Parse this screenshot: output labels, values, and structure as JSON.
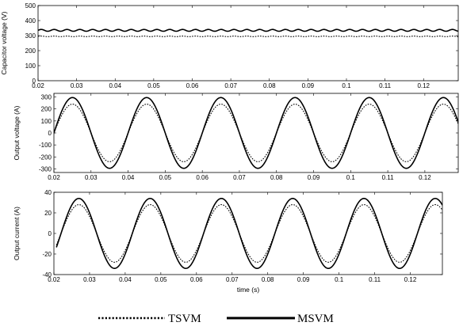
{
  "chart_data": [
    {
      "type": "line",
      "xlabel": "",
      "ylabel": "Capacitor voltage (V)",
      "xlim": [
        0.02,
        0.129
      ],
      "ylim": [
        0,
        500
      ],
      "xticks": [
        0.02,
        0.03,
        0.04,
        0.05,
        0.06,
        0.07,
        0.08,
        0.09,
        0.1,
        0.11,
        0.12
      ],
      "xtick_labels": [
        "0.02",
        "0.03",
        "0.04",
        "0.05",
        "0.06",
        "0.07",
        "0.08",
        "0.09",
        "0.1",
        "0.11",
        "0.12"
      ],
      "yticks": [
        0,
        100,
        200,
        300,
        400,
        500
      ],
      "ytick_labels": [
        "0",
        "100",
        "200",
        "300",
        "400",
        "500"
      ],
      "series": [
        {
          "name": "MSVM",
          "style": "solid",
          "kind": "dc",
          "level": 335,
          "ripple": 6,
          "freq": 300
        },
        {
          "name": "TSVM",
          "style": "dotted",
          "kind": "dc",
          "level": 295,
          "ripple": 2,
          "freq": 300
        }
      ]
    },
    {
      "type": "line",
      "xlabel": "",
      "ylabel": "Output voltage (A)",
      "xlim": [
        0.02,
        0.129
      ],
      "ylim": [
        -330,
        330
      ],
      "xticks": [
        0.02,
        0.03,
        0.04,
        0.05,
        0.06,
        0.07,
        0.08,
        0.09,
        0.1,
        0.11,
        0.12
      ],
      "xtick_labels": [
        "0.02",
        "0.03",
        "0.04",
        "0.05",
        "0.06",
        "0.07",
        "0.08",
        "0.09",
        "0.1",
        "0.11",
        "0.12"
      ],
      "yticks": [
        -300,
        -200,
        -100,
        0,
        100,
        200,
        300
      ],
      "ytick_labels": [
        "-300",
        "-200",
        "-100",
        "0",
        "100",
        "200",
        "300"
      ],
      "series": [
        {
          "name": "MSVM",
          "style": "solid",
          "kind": "sine",
          "amplitude": 295,
          "freq": 50,
          "phase_deg": 0,
          "x_start": 0.0195
        },
        {
          "name": "TSVM",
          "style": "dotted",
          "kind": "sine",
          "amplitude": 240,
          "freq": 50,
          "phase_deg": 0,
          "x_start": 0.0195
        }
      ]
    },
    {
      "type": "line",
      "xlabel": "time (s)",
      "ylabel": "Output current (A)",
      "xlim": [
        0.02,
        0.129
      ],
      "ylim": [
        -40,
        40
      ],
      "xticks": [
        0.02,
        0.03,
        0.04,
        0.05,
        0.06,
        0.07,
        0.08,
        0.09,
        0.1,
        0.11,
        0.12
      ],
      "xtick_labels": [
        "0.02",
        "0.03",
        "0.04",
        "0.05",
        "0.06",
        "0.07",
        "0.08",
        "0.09",
        "0.1",
        "0.11",
        "0.12"
      ],
      "yticks": [
        -40,
        -20,
        0,
        20,
        40
      ],
      "ytick_labels": [
        "-40",
        "-20",
        "0",
        "20",
        "40"
      ],
      "series": [
        {
          "name": "MSVM",
          "style": "solid",
          "kind": "sine",
          "amplitude": 34,
          "freq": 50,
          "phase_deg": -36,
          "x_start": 0.0207
        },
        {
          "name": "TSVM",
          "style": "dotted",
          "kind": "sine",
          "amplitude": 28,
          "freq": 50,
          "phase_deg": -36,
          "x_start": 0.0207
        }
      ]
    }
  ],
  "legend": {
    "items": [
      {
        "label": "TSVM",
        "style": "dotted"
      },
      {
        "label": "MSVM",
        "style": "solid"
      }
    ]
  }
}
